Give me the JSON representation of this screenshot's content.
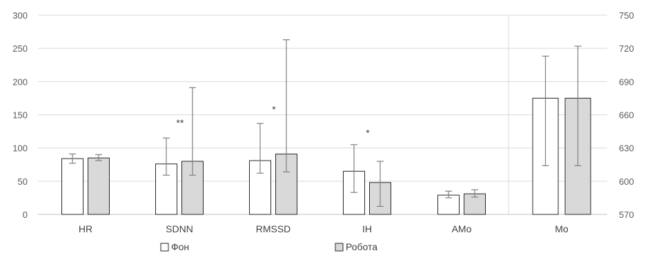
{
  "chart_data": {
    "type": "bar",
    "categories": [
      "HR",
      "SDNN",
      "RMSSD",
      "IH",
      "AMo",
      "Mo"
    ],
    "series": [
      {
        "name": "Фон",
        "color": "#ffffff",
        "values": [
          84,
          76,
          81,
          65,
          29,
          675
        ],
        "err_low": [
          77,
          59,
          62,
          33,
          25,
          614
        ],
        "err_high": [
          91,
          115,
          137,
          105,
          35,
          713
        ]
      },
      {
        "name": "Робота",
        "color": "#d9d9d9",
        "values": [
          85,
          80,
          91,
          48,
          31,
          675
        ],
        "err_low": [
          81,
          59,
          64,
          12,
          26,
          614
        ],
        "err_high": [
          90,
          191,
          263,
          80,
          37,
          722
        ]
      }
    ],
    "secondary_axis_categories": [
      "Mo"
    ],
    "y_left": {
      "min": 0,
      "max": 300,
      "ticks": [
        "0",
        "50",
        "100",
        "150",
        "200",
        "250",
        "300"
      ]
    },
    "y_right": {
      "min": 570,
      "max": 750,
      "ticks": [
        "570",
        "600",
        "630",
        "660",
        "690",
        "720",
        "750"
      ]
    },
    "annotations": [
      {
        "category": "SDNN",
        "text": "**",
        "at_value": 133
      },
      {
        "category": "RMSSD",
        "text": "*",
        "at_value": 153
      },
      {
        "category": "IH",
        "text": "*",
        "at_value": 118
      }
    ],
    "grid": true,
    "legend_position": "bottom"
  }
}
